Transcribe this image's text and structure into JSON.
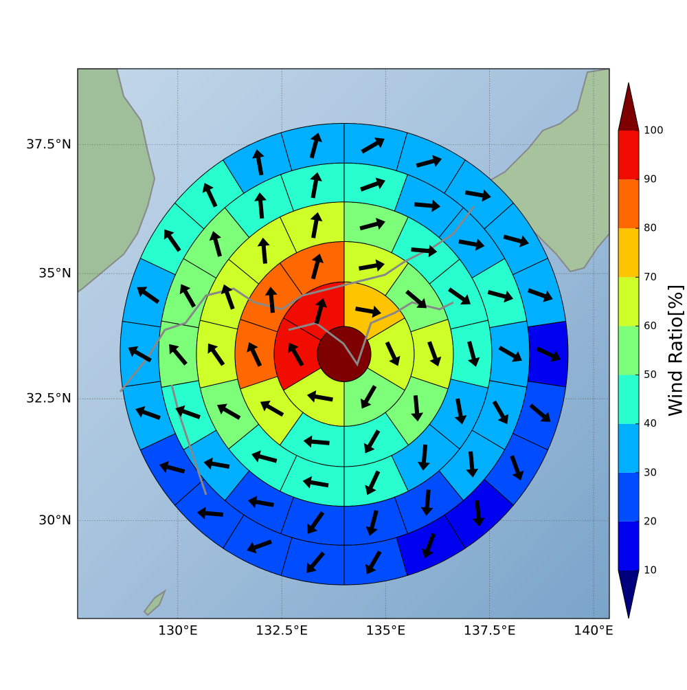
{
  "chart_data": {
    "type": "map",
    "xlim": [
      127.59,
      140.38
    ],
    "ylim": [
      27.94,
      38.93
    ],
    "xticks": [
      {
        "value": 130,
        "label": "130°E"
      },
      {
        "value": 132.5,
        "label": "132.5°E"
      },
      {
        "value": 135,
        "label": "135°E"
      },
      {
        "value": 137.5,
        "label": "137.5°E"
      },
      {
        "value": 140,
        "label": "140°E"
      }
    ],
    "yticks": [
      {
        "value": 30,
        "label": "30°N"
      },
      {
        "value": 32.5,
        "label": "32.5°N"
      },
      {
        "value": 35,
        "label": "35°N"
      },
      {
        "value": 37.5,
        "label": "37.5°N"
      }
    ],
    "grid": true,
    "center_lon": 134,
    "center_lat": 33.4,
    "center_value": 105,
    "rings": [
      {
        "values": [
          75,
          65,
          55,
          65,
          95,
          95
        ],
        "direction": [
          100,
          155,
          210,
          280,
          330,
          15
        ]
      },
      {
        "values": [
          65,
          55,
          65,
          55,
          45,
          45,
          65,
          85,
          85,
          85
        ],
        "direction": [
          80,
          130,
          160,
          175,
          210,
          275,
          300,
          335,
          355,
          15
        ]
      },
      {
        "values": [
          55,
          45,
          45,
          45,
          35,
          35,
          45,
          45,
          45,
          55,
          65,
          65,
          65,
          65
        ],
        "direction": [
          75,
          95,
          125,
          165,
          170,
          185,
          205,
          280,
          285,
          300,
          325,
          340,
          355,
          10
        ]
      },
      {
        "values": [
          45,
          35,
          35,
          45,
          35,
          35,
          35,
          25,
          25,
          25,
          25,
          35,
          45,
          55,
          55,
          55,
          45,
          45
        ],
        "direction": [
          70,
          95,
          100,
          105,
          120,
          150,
          175,
          185,
          195,
          215,
          280,
          280,
          290,
          320,
          330,
          345,
          355,
          10
        ]
      },
      {
        "values": [
          35,
          35,
          35,
          35,
          35,
          15,
          25,
          25,
          15,
          15,
          25,
          25,
          25,
          25,
          25,
          35,
          35,
          35,
          45,
          45,
          35,
          35
        ],
        "direction": [
          60,
          75,
          100,
          105,
          110,
          115,
          130,
          160,
          175,
          200,
          210,
          220,
          250,
          275,
          285,
          290,
          300,
          305,
          325,
          335,
          350,
          15
        ]
      }
    ],
    "colorbar": {
      "label": "Wind Ratio[%]",
      "boundaries": [
        10,
        20,
        30,
        40,
        50,
        60,
        70,
        80,
        90,
        100
      ],
      "colors": [
        "#00007f",
        "#0000f1",
        "#004cff",
        "#00b0ff",
        "#29ffce",
        "#7dff7a",
        "#ceff29",
        "#ffc400",
        "#ff6800",
        "#f10c00",
        "#7f0000"
      ]
    }
  }
}
